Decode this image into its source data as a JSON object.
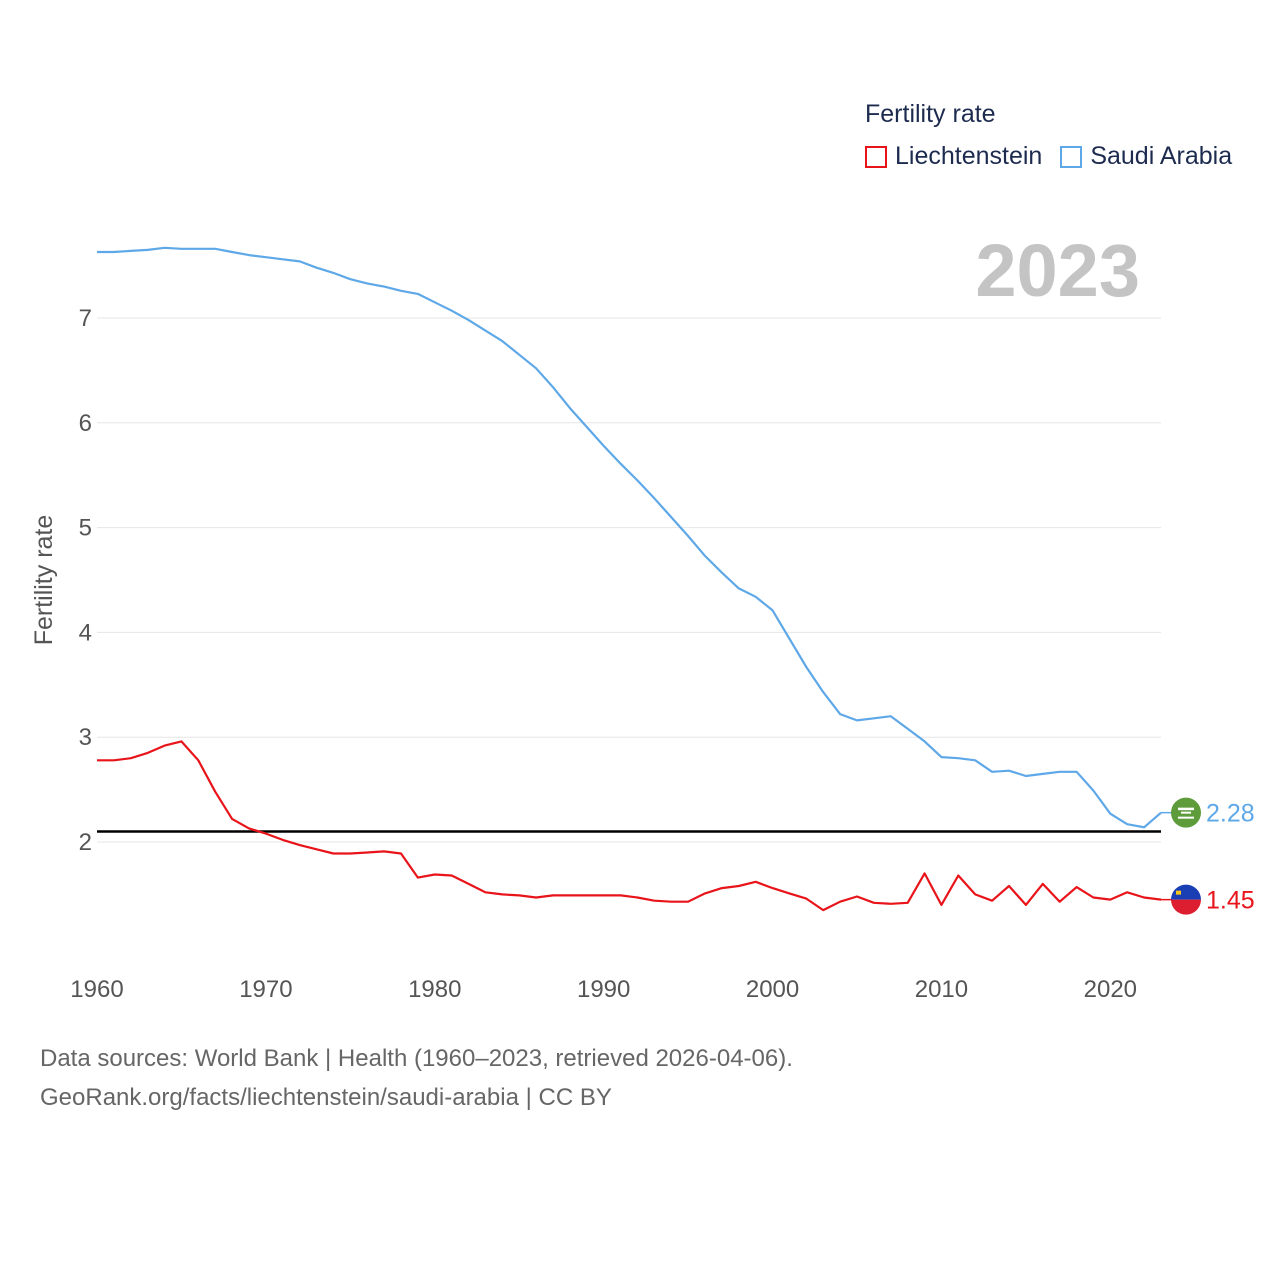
{
  "legend": {
    "title": "Fertility rate",
    "items": [
      {
        "label": "Liechtenstein",
        "color": "#e8141a"
      },
      {
        "label": "Saudi Arabia",
        "color": "#5ea8e8"
      }
    ]
  },
  "year_badge": "2023",
  "source": {
    "line1": "Data sources: World Bank | Health (1960–2023, retrieved 2026-04-06).",
    "line2": "GeoRank.org/facts/liechtenstein/saudi-arabia | CC BY"
  },
  "chart_data": {
    "type": "line",
    "title": "Fertility rate",
    "xlabel": "",
    "ylabel": "Fertility rate",
    "xlim": [
      1960,
      2023
    ],
    "ylim": [
      0.8,
      8.1
    ],
    "xticks": [
      1960,
      1970,
      1980,
      1990,
      2000,
      2010,
      2020
    ],
    "yticks": [
      2,
      3,
      4,
      5,
      6,
      7
    ],
    "reference_line": {
      "y": 2.1,
      "color": "#000000"
    },
    "series": [
      {
        "name": "Liechtenstein",
        "color": "#e8141a",
        "end_label": "1.45",
        "icon": "liechtenstein-flag-icon",
        "x": [
          1960,
          1961,
          1962,
          1963,
          1964,
          1965,
          1966,
          1967,
          1968,
          1969,
          1970,
          1971,
          1972,
          1973,
          1974,
          1975,
          1976,
          1977,
          1978,
          1979,
          1980,
          1981,
          1982,
          1983,
          1984,
          1985,
          1986,
          1987,
          1988,
          1989,
          1990,
          1991,
          1992,
          1993,
          1994,
          1995,
          1996,
          1997,
          1998,
          1999,
          2000,
          2001,
          2002,
          2003,
          2004,
          2005,
          2006,
          2007,
          2008,
          2009,
          2010,
          2011,
          2012,
          2013,
          2014,
          2015,
          2016,
          2017,
          2018,
          2019,
          2020,
          2021,
          2022,
          2023
        ],
        "y": [
          2.78,
          2.78,
          2.8,
          2.85,
          2.92,
          2.96,
          2.78,
          2.48,
          2.22,
          2.13,
          2.08,
          2.02,
          1.97,
          1.93,
          1.89,
          1.89,
          1.9,
          1.91,
          1.89,
          1.66,
          1.69,
          1.68,
          1.6,
          1.52,
          1.5,
          1.49,
          1.47,
          1.49,
          1.49,
          1.49,
          1.49,
          1.49,
          1.47,
          1.44,
          1.43,
          1.43,
          1.51,
          1.56,
          1.58,
          1.62,
          1.56,
          1.51,
          1.46,
          1.35,
          1.43,
          1.48,
          1.42,
          1.41,
          1.42,
          1.7,
          1.4,
          1.68,
          1.5,
          1.44,
          1.58,
          1.4,
          1.6,
          1.43,
          1.57,
          1.47,
          1.45,
          1.52,
          1.47,
          1.45
        ]
      },
      {
        "name": "Saudi Arabia",
        "color": "#5ea8e8",
        "end_label": "2.28",
        "icon": "saudi-arabia-flag-icon",
        "x": [
          1960,
          1961,
          1962,
          1963,
          1964,
          1965,
          1966,
          1967,
          1968,
          1969,
          1970,
          1971,
          1972,
          1973,
          1974,
          1975,
          1976,
          1977,
          1978,
          1979,
          1980,
          1981,
          1982,
          1983,
          1984,
          1985,
          1986,
          1987,
          1988,
          1989,
          1990,
          1991,
          1992,
          1993,
          1994,
          1995,
          1996,
          1997,
          1998,
          1999,
          2000,
          2001,
          2002,
          2003,
          2004,
          2005,
          2006,
          2007,
          2008,
          2009,
          2010,
          2011,
          2012,
          2013,
          2014,
          2015,
          2016,
          2017,
          2018,
          2019,
          2020,
          2021,
          2022,
          2023
        ],
        "y": [
          7.63,
          7.63,
          7.64,
          7.65,
          7.67,
          7.66,
          7.66,
          7.66,
          7.63,
          7.6,
          7.58,
          7.56,
          7.54,
          7.48,
          7.43,
          7.37,
          7.33,
          7.3,
          7.26,
          7.23,
          7.15,
          7.07,
          6.98,
          6.88,
          6.78,
          6.65,
          6.52,
          6.34,
          6.14,
          5.96,
          5.78,
          5.61,
          5.45,
          5.28,
          5.1,
          4.92,
          4.73,
          4.57,
          4.42,
          4.34,
          4.21,
          3.94,
          3.67,
          3.43,
          3.22,
          3.16,
          3.18,
          3.2,
          3.08,
          2.96,
          2.81,
          2.8,
          2.78,
          2.67,
          2.68,
          2.63,
          2.65,
          2.67,
          2.67,
          2.49,
          2.27,
          2.17,
          2.14,
          2.28
        ]
      }
    ]
  }
}
